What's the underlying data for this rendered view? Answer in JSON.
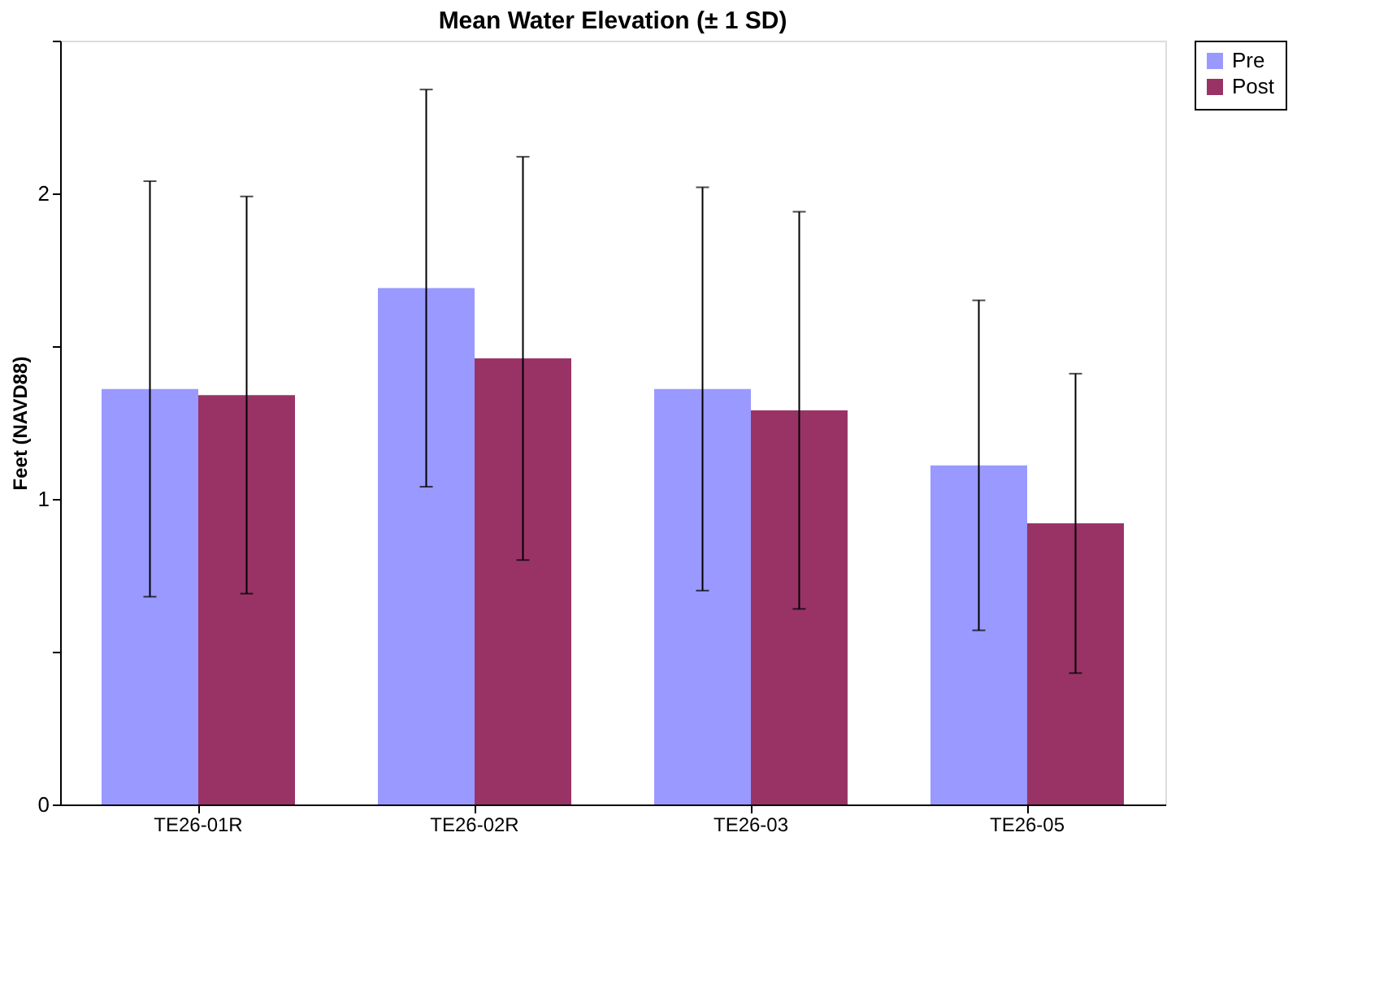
{
  "chart_data": {
    "type": "bar",
    "title": "Mean Water Elevation (± 1 SD)",
    "ylabel": "Feet (NAVD88)",
    "categories": [
      "TE26-01R",
      "TE26-02R",
      "TE26-03",
      "TE26-05"
    ],
    "series": [
      {
        "name": "Pre",
        "color": "#9999ff",
        "values": [
          1.36,
          1.69,
          1.36,
          1.11
        ],
        "errors": [
          0.68,
          0.65,
          0.66,
          0.54
        ]
      },
      {
        "name": "Post",
        "color": "#993366",
        "values": [
          1.34,
          1.46,
          1.29,
          0.92
        ],
        "errors": [
          0.65,
          0.66,
          0.65,
          0.49
        ]
      }
    ],
    "ylim": [
      0,
      2.5
    ],
    "yticks": [
      0,
      {
        "value": 0.5,
        "label": null
      },
      1,
      {
        "value": 1.5,
        "label": null
      },
      2,
      {
        "value": 2.5,
        "label": null
      }
    ],
    "grid": false,
    "legend": "right"
  }
}
